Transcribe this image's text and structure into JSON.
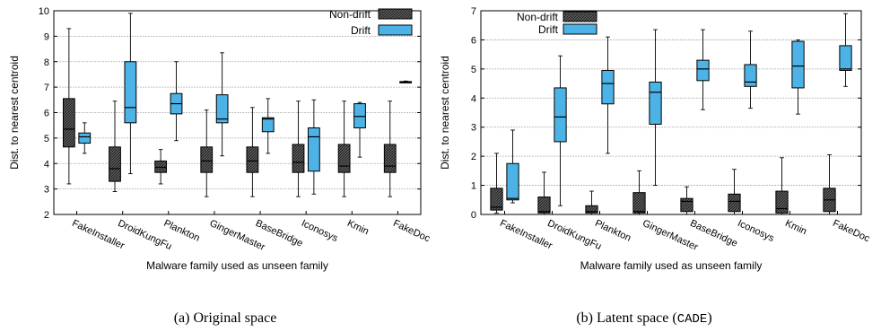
{
  "colors": {
    "drift": "#4db3e6",
    "nondrift_fill": "#555555",
    "grid": "#b0b0b0"
  },
  "chart_data": [
    {
      "type": "box",
      "categories": [
        "FakeInstaller",
        "DroidKungFu",
        "Plankton",
        "GingerMaster",
        "BaseBridge",
        "Iconosys",
        "Kmin",
        "FakeDoc"
      ],
      "xlabel": "Malware family used as unseen family",
      "ylabel": "Dist. to nearest centroid",
      "ylim": [
        2,
        10
      ],
      "yticks": [
        "2",
        "3",
        "4",
        "5",
        "6",
        "7",
        "8",
        "9",
        "10"
      ],
      "legend": [
        "Non-drift",
        "Drift"
      ],
      "legend_position": "top-right",
      "caption_prefix": "(a) Original space",
      "caption_mono": "",
      "caption_suffix": "",
      "series": [
        {
          "name": "Non-drift",
          "boxes": [
            {
              "min": 3.2,
              "q1": 4.65,
              "median": 5.35,
              "q3": 6.55,
              "max": 9.3
            },
            {
              "min": 2.9,
              "q1": 3.3,
              "median": 3.8,
              "q3": 4.65,
              "max": 6.45
            },
            {
              "min": 3.2,
              "q1": 3.65,
              "median": 3.85,
              "q3": 4.1,
              "max": 4.55
            },
            {
              "min": 2.7,
              "q1": 3.65,
              "median": 4.1,
              "q3": 4.65,
              "max": 6.1
            },
            {
              "min": 2.7,
              "q1": 3.65,
              "median": 4.1,
              "q3": 4.65,
              "max": 6.2
            },
            {
              "min": 2.7,
              "q1": 3.65,
              "median": 4.05,
              "q3": 4.75,
              "max": 6.45
            },
            {
              "min": 2.7,
              "q1": 3.65,
              "median": 3.9,
              "q3": 4.75,
              "max": 6.45
            },
            {
              "min": 2.7,
              "q1": 3.65,
              "median": 3.9,
              "q3": 4.75,
              "max": 6.45
            }
          ]
        },
        {
          "name": "Drift",
          "boxes": [
            {
              "min": 4.4,
              "q1": 4.8,
              "median": 5.05,
              "q3": 5.2,
              "max": 5.6
            },
            {
              "min": 3.6,
              "q1": 5.6,
              "median": 6.2,
              "q3": 8.0,
              "max": 9.9
            },
            {
              "min": 4.9,
              "q1": 5.95,
              "median": 6.35,
              "q3": 6.75,
              "max": 8.0
            },
            {
              "min": 4.3,
              "q1": 5.6,
              "median": 5.75,
              "q3": 6.7,
              "max": 8.35
            },
            {
              "min": 4.4,
              "q1": 5.25,
              "median": 5.75,
              "q3": 5.8,
              "max": 6.55
            },
            {
              "min": 2.8,
              "q1": 3.7,
              "median": 5.05,
              "q3": 5.4,
              "max": 6.5
            },
            {
              "min": 4.25,
              "q1": 5.4,
              "median": 5.85,
              "q3": 6.35,
              "max": 6.4
            },
            {
              "min": 7.18,
              "q1": 7.18,
              "median": 7.2,
              "q3": 7.22,
              "max": 7.24
            }
          ]
        }
      ]
    },
    {
      "type": "box",
      "categories": [
        "FakeInstaller",
        "DroidKungFu",
        "Plankton",
        "GingerMaster",
        "BaseBridge",
        "Iconosys",
        "Kmin",
        "FakeDoc"
      ],
      "xlabel": "Malware family used as unseen family",
      "ylabel": "Dist. to nearest centroid",
      "ylim": [
        0,
        7
      ],
      "yticks": [
        "0",
        "1",
        "2",
        "3",
        "4",
        "5",
        "6",
        "7"
      ],
      "legend": [
        "Non-drift",
        "Drift"
      ],
      "legend_position": "top-left",
      "caption_prefix": "(b) Latent space (",
      "caption_mono": "CADE",
      "caption_suffix": ")",
      "series": [
        {
          "name": "Non-drift",
          "boxes": [
            {
              "min": 0.05,
              "q1": 0.15,
              "median": 0.25,
              "q3": 0.9,
              "max": 2.1
            },
            {
              "min": 0.0,
              "q1": 0.05,
              "median": 0.1,
              "q3": 0.6,
              "max": 1.45
            },
            {
              "min": 0.0,
              "q1": 0.05,
              "median": 0.1,
              "q3": 0.3,
              "max": 0.8
            },
            {
              "min": 0.0,
              "q1": 0.05,
              "median": 0.1,
              "q3": 0.75,
              "max": 1.5
            },
            {
              "min": 0.0,
              "q1": 0.1,
              "median": 0.45,
              "q3": 0.55,
              "max": 0.95
            },
            {
              "min": 0.0,
              "q1": 0.1,
              "median": 0.45,
              "q3": 0.7,
              "max": 1.55
            },
            {
              "min": 0.0,
              "q1": 0.05,
              "median": 0.2,
              "q3": 0.8,
              "max": 1.95
            },
            {
              "min": 0.0,
              "q1": 0.1,
              "median": 0.5,
              "q3": 0.9,
              "max": 2.05
            }
          ]
        },
        {
          "name": "Drift",
          "boxes": [
            {
              "min": 0.4,
              "q1": 0.5,
              "median": 0.55,
              "q3": 1.75,
              "max": 2.9
            },
            {
              "min": 0.3,
              "q1": 2.5,
              "median": 3.35,
              "q3": 4.35,
              "max": 5.45
            },
            {
              "min": 2.1,
              "q1": 3.8,
              "median": 4.5,
              "q3": 4.95,
              "max": 6.1
            },
            {
              "min": 1.0,
              "q1": 3.1,
              "median": 4.2,
              "q3": 4.55,
              "max": 6.35
            },
            {
              "min": 3.6,
              "q1": 4.6,
              "median": 5.0,
              "q3": 5.3,
              "max": 6.35
            },
            {
              "min": 3.65,
              "q1": 4.4,
              "median": 4.55,
              "q3": 5.15,
              "max": 6.3
            },
            {
              "min": 3.45,
              "q1": 4.35,
              "median": 5.1,
              "q3": 5.95,
              "max": 6.0
            },
            {
              "min": 4.4,
              "q1": 4.95,
              "median": 5.0,
              "q3": 5.8,
              "max": 6.9
            }
          ]
        }
      ]
    }
  ]
}
